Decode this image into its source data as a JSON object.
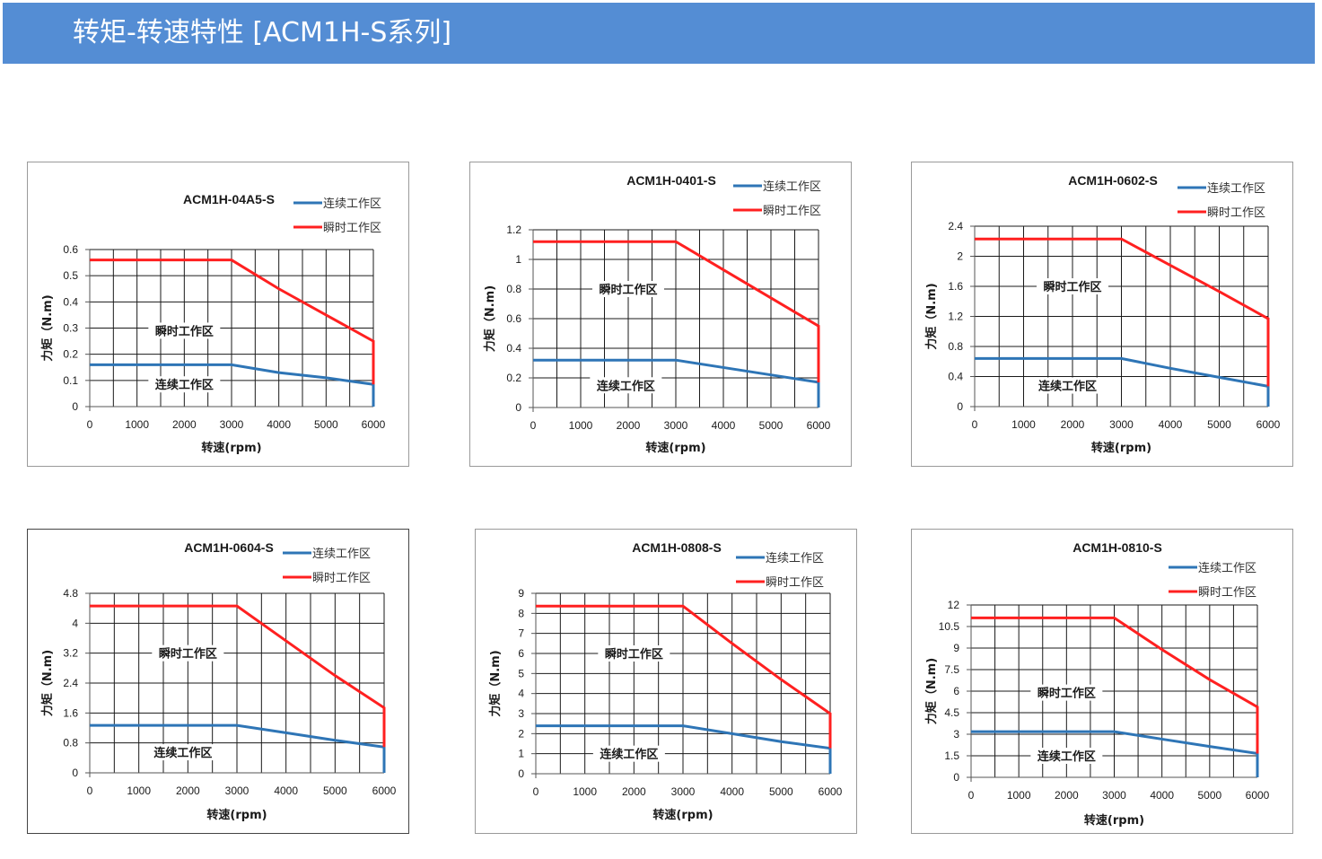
{
  "header": {
    "title": "转矩-转速特性 [ACM1H-S系列]",
    "background_color": "#548DD4"
  },
  "chart_data": [
    {
      "type": "line",
      "title": "ACM1H-04A5-S",
      "xlabel": "转速(rpm)",
      "ylabel": "力矩（N.m)",
      "xlim": [
        0,
        6000
      ],
      "ylim": [
        0,
        0.6
      ],
      "x_ticks": [
        0,
        1000,
        2000,
        3000,
        4000,
        5000,
        6000
      ],
      "x_tick_labels": [
        "0",
        "1000",
        "2000",
        "3000",
        "4000",
        "5000",
        "6000"
      ],
      "y_ticks": [
        0,
        0.1,
        0.2,
        0.3,
        0.4,
        0.5,
        0.6
      ],
      "y_tick_labels": [
        "0",
        "0.1",
        "0.2",
        "0.3",
        "0.4",
        "0.5",
        "0.6"
      ],
      "x_minor_step": 500,
      "series": [
        {
          "name": "连续工作区",
          "color": "#2E75B6",
          "x": [
            0,
            3000,
            4000,
            5000,
            6000,
            6000
          ],
          "y": [
            0.16,
            0.16,
            0.13,
            0.11,
            0.085,
            0
          ]
        },
        {
          "name": "瞬时工作区",
          "color": "#FF2020",
          "x": [
            0,
            3000,
            4000,
            5000,
            6000,
            6000
          ],
          "y": [
            0.56,
            0.56,
            0.45,
            0.35,
            0.25,
            0.085
          ]
        }
      ],
      "region_labels": [
        {
          "text": "瞬时工作区",
          "x": 2000,
          "y": 0.29
        },
        {
          "text": "连续工作区",
          "x": 2000,
          "y": 0.085
        }
      ],
      "legend": "top-right",
      "grid": true
    },
    {
      "type": "line",
      "title": "ACM1H-0401-S",
      "xlabel": "转速(rpm)",
      "ylabel": "力矩（N.m)",
      "xlim": [
        0,
        6000
      ],
      "ylim": [
        0,
        1.2
      ],
      "x_ticks": [
        0,
        1000,
        2000,
        3000,
        4000,
        5000,
        6000
      ],
      "x_tick_labels": [
        "0",
        "1000",
        "2000",
        "3000",
        "4000",
        "5000",
        "6000"
      ],
      "y_ticks": [
        0,
        0.2,
        0.4,
        0.6,
        0.8,
        1.0,
        1.2
      ],
      "y_tick_labels": [
        "0",
        "0.2",
        "0.4",
        "0.6",
        "0.8",
        "1",
        "1.2"
      ],
      "x_minor_step": 500,
      "series": [
        {
          "name": "连续工作区",
          "color": "#2E75B6",
          "x": [
            0,
            3000,
            4000,
            5000,
            6000,
            6000
          ],
          "y": [
            0.32,
            0.32,
            0.27,
            0.22,
            0.17,
            0
          ]
        },
        {
          "name": "瞬时工作区",
          "color": "#FF2020",
          "x": [
            0,
            3000,
            4000,
            5000,
            6000,
            6000
          ],
          "y": [
            1.12,
            1.12,
            0.93,
            0.74,
            0.55,
            0.17
          ]
        }
      ],
      "region_labels": [
        {
          "text": "瞬时工作区",
          "x": 2000,
          "y": 0.8
        },
        {
          "text": "连续工作区",
          "x": 1950,
          "y": 0.15
        }
      ],
      "legend": "top-right",
      "grid": true
    },
    {
      "type": "line",
      "title": "ACM1H-0602-S",
      "xlabel": "转速(rpm)",
      "ylabel": "力矩（N.m)",
      "xlim": [
        0,
        6000
      ],
      "ylim": [
        0,
        2.4
      ],
      "x_ticks": [
        0,
        1000,
        2000,
        3000,
        4000,
        5000,
        6000
      ],
      "x_tick_labels": [
        "0",
        "1000",
        "2000",
        "3000",
        "4000",
        "5000",
        "6000"
      ],
      "y_ticks": [
        0,
        0.4,
        0.8,
        1.2,
        1.6,
        2.0,
        2.4
      ],
      "y_tick_labels": [
        "0",
        "0.4",
        "0.8",
        "1.2",
        "1.6",
        "2",
        "2.4"
      ],
      "x_minor_step": 500,
      "series": [
        {
          "name": "连续工作区",
          "color": "#2E75B6",
          "x": [
            0,
            3000,
            4000,
            5000,
            6000,
            6000
          ],
          "y": [
            0.64,
            0.64,
            0.51,
            0.39,
            0.27,
            0
          ]
        },
        {
          "name": "瞬时工作区",
          "color": "#FF2020",
          "x": [
            0,
            3000,
            4000,
            5000,
            6000,
            6000
          ],
          "y": [
            2.23,
            2.23,
            1.88,
            1.53,
            1.17,
            0.27
          ]
        }
      ],
      "region_labels": [
        {
          "text": "瞬时工作区",
          "x": 2000,
          "y": 1.6
        },
        {
          "text": "连续工作区",
          "x": 1900,
          "y": 0.28
        }
      ],
      "legend": "top-right",
      "grid": true
    },
    {
      "type": "line",
      "title": "ACM1H-0604-S",
      "xlabel": "转速(rpm)",
      "ylabel": "力矩（N.m)",
      "xlim": [
        0,
        6000
      ],
      "ylim": [
        0,
        4.8
      ],
      "x_ticks": [
        0,
        1000,
        2000,
        3000,
        4000,
        5000,
        6000
      ],
      "x_tick_labels": [
        "0",
        "1000",
        "2000",
        "3000",
        "4000",
        "5000",
        "6000"
      ],
      "y_ticks": [
        0,
        0.8,
        1.6,
        2.4,
        3.2,
        4.0,
        4.8
      ],
      "y_tick_labels": [
        "0",
        "0.8",
        "1.6",
        "2.4",
        "3.2",
        "4",
        "4.8"
      ],
      "x_minor_step": 500,
      "series": [
        {
          "name": "连续工作区",
          "color": "#2E75B6",
          "x": [
            0,
            3000,
            4000,
            5000,
            6000,
            6000
          ],
          "y": [
            1.27,
            1.27,
            1.07,
            0.87,
            0.69,
            0
          ]
        },
        {
          "name": "瞬时工作区",
          "color": "#FF2020",
          "x": [
            0,
            3000,
            4000,
            5000,
            6000,
            6000
          ],
          "y": [
            4.46,
            4.46,
            3.53,
            2.6,
            1.74,
            0.69
          ]
        }
      ],
      "region_labels": [
        {
          "text": "瞬时工作区",
          "x": 2000,
          "y": 3.2
        },
        {
          "text": "连续工作区",
          "x": 1900,
          "y": 0.55
        }
      ],
      "legend": "top-right",
      "grid": true
    },
    {
      "type": "line",
      "title": "ACM1H-0808-S",
      "xlabel": "转速(rpm)",
      "ylabel": "力矩（N.m)",
      "xlim": [
        0,
        6000
      ],
      "ylim": [
        0,
        9
      ],
      "x_ticks": [
        0,
        1000,
        2000,
        3000,
        4000,
        5000,
        6000
      ],
      "x_tick_labels": [
        "0",
        "1000",
        "2000",
        "3000",
        "4000",
        "5000",
        "6000"
      ],
      "y_ticks": [
        0,
        1,
        2,
        3,
        4,
        5,
        6,
        7,
        8,
        9
      ],
      "y_tick_labels": [
        "0",
        "1",
        "2",
        "3",
        "4",
        "5",
        "6",
        "7",
        "8",
        "9"
      ],
      "x_minor_step": 500,
      "series": [
        {
          "name": "连续工作区",
          "color": "#2E75B6",
          "x": [
            0,
            3000,
            4000,
            5000,
            6000,
            6000
          ],
          "y": [
            2.39,
            2.39,
            2.0,
            1.6,
            1.27,
            0
          ]
        },
        {
          "name": "瞬时工作区",
          "color": "#FF2020",
          "x": [
            0,
            3000,
            4000,
            5000,
            6000,
            6000
          ],
          "y": [
            8.36,
            8.36,
            6.5,
            4.7,
            3.0,
            1.27
          ]
        }
      ],
      "region_labels": [
        {
          "text": "瞬时工作区",
          "x": 2000,
          "y": 6.0
        },
        {
          "text": "连续工作区",
          "x": 1900,
          "y": 1.0
        }
      ],
      "legend": "top-right",
      "grid": true
    },
    {
      "type": "line",
      "title": "ACM1H-0810-S",
      "xlabel": "转速(rpm)",
      "ylabel": "力矩（N.m)",
      "xlim": [
        0,
        6000
      ],
      "ylim": [
        0,
        12
      ],
      "x_ticks": [
        0,
        1000,
        2000,
        3000,
        4000,
        5000,
        6000
      ],
      "x_tick_labels": [
        "0",
        "1000",
        "2000",
        "3000",
        "4000",
        "5000",
        "6000"
      ],
      "y_ticks": [
        0,
        1.5,
        3,
        4.5,
        6,
        7.5,
        9,
        10.5,
        12
      ],
      "y_tick_labels": [
        "0",
        "1.5",
        "3",
        "4.5",
        "6",
        "7.5",
        "9",
        "10.5",
        "12"
      ],
      "x_minor_step": 500,
      "series": [
        {
          "name": "连续工作区",
          "color": "#2E75B6",
          "x": [
            0,
            3000,
            4000,
            5000,
            6000,
            6000
          ],
          "y": [
            3.18,
            3.18,
            2.66,
            2.15,
            1.66,
            0
          ]
        },
        {
          "name": "瞬时工作区",
          "color": "#FF2020",
          "x": [
            0,
            3000,
            4000,
            5000,
            6000,
            6000
          ],
          "y": [
            11.1,
            11.1,
            8.9,
            6.8,
            4.9,
            1.66
          ]
        }
      ],
      "region_labels": [
        {
          "text": "瞬时工作区",
          "x": 2000,
          "y": 5.9
        },
        {
          "text": "连续工作区",
          "x": 2000,
          "y": 1.5
        }
      ],
      "legend": "top-right",
      "grid": true
    }
  ]
}
